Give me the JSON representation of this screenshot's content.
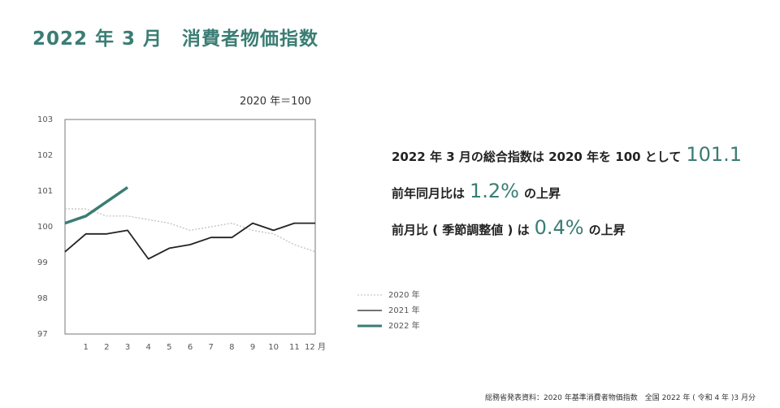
{
  "chart_data": {
    "type": "line",
    "title": "2022 年 3 月　消費者物価指数",
    "unit_note": "2020 年＝100",
    "categories": [
      null,
      "1",
      "2",
      "3",
      "4",
      "5",
      "6",
      "7",
      "8",
      "9",
      "10",
      "11",
      "12 月"
    ],
    "series": [
      {
        "name": "2020 年",
        "color": "#bdbdbd",
        "dash": true,
        "values": [
          100.5,
          100.5,
          100.3,
          100.3,
          100.2,
          100.1,
          99.9,
          100.0,
          100.1,
          99.9,
          99.8,
          99.5,
          99.3
        ]
      },
      {
        "name": "2021 年",
        "color": "#222222",
        "dash": false,
        "values": [
          99.3,
          99.8,
          99.8,
          99.9,
          99.1,
          99.4,
          99.5,
          99.7,
          99.7,
          100.1,
          99.9,
          100.1,
          100.1
        ]
      },
      {
        "name": "2022 年",
        "color": "#3a7d74",
        "dash": false,
        "values": [
          100.1,
          100.3,
          100.7,
          101.1,
          null,
          null,
          null,
          null,
          null,
          null,
          null,
          null,
          null
        ]
      }
    ],
    "ylim": [
      97,
      103
    ],
    "yticks": [
      97,
      98,
      99,
      100,
      101,
      102,
      103
    ],
    "grid": false
  },
  "summary": [
    {
      "text": "2022 年 3 月の総合指数は 2020 年を 100 として",
      "highlight": "101.1"
    },
    {
      "text": "前年同月比は",
      "highlight": "1.2%",
      "suffix": "の上昇"
    },
    {
      "text": "前月比 ( 季節調整値 ) は",
      "highlight": "0.4%",
      "suffix": "の上昇"
    }
  ],
  "source": "総務省発表資料：2020 年基準消費者物価指数　全国 2022 年 ( 令和 4 年 )3 月分"
}
